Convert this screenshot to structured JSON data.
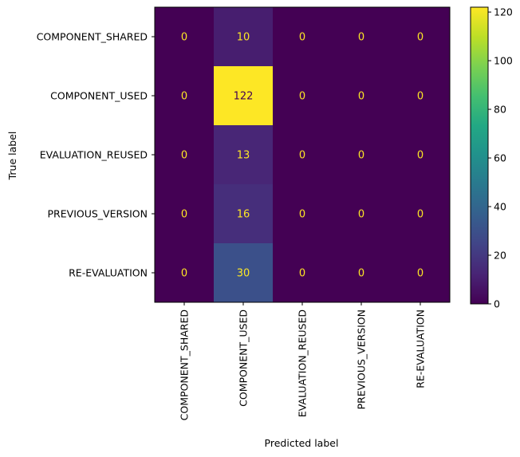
{
  "chart_data": {
    "type": "heatmap",
    "title": "",
    "xlabel": "Predicted label",
    "ylabel": "True label",
    "x_categories": [
      "COMPONENT_SHARED",
      "COMPONENT_USED",
      "EVALUATION_REUSED",
      "PREVIOUS_VERSION",
      "RE-EVALUATION"
    ],
    "y_categories": [
      "COMPONENT_SHARED",
      "COMPONENT_USED",
      "EVALUATION_REUSED",
      "PREVIOUS_VERSION",
      "RE-EVALUATION"
    ],
    "values": [
      [
        0,
        10,
        0,
        0,
        0
      ],
      [
        0,
        122,
        0,
        0,
        0
      ],
      [
        0,
        13,
        0,
        0,
        0
      ],
      [
        0,
        16,
        0,
        0,
        0
      ],
      [
        0,
        30,
        0,
        0,
        0
      ]
    ],
    "colormap": "viridis",
    "colorbar": {
      "min": 0,
      "max": 122,
      "ticks": [
        0,
        20,
        40,
        60,
        80,
        100,
        120
      ]
    },
    "text_colors": {
      "on_dark": "#fde725",
      "on_light": "#440154"
    }
  }
}
